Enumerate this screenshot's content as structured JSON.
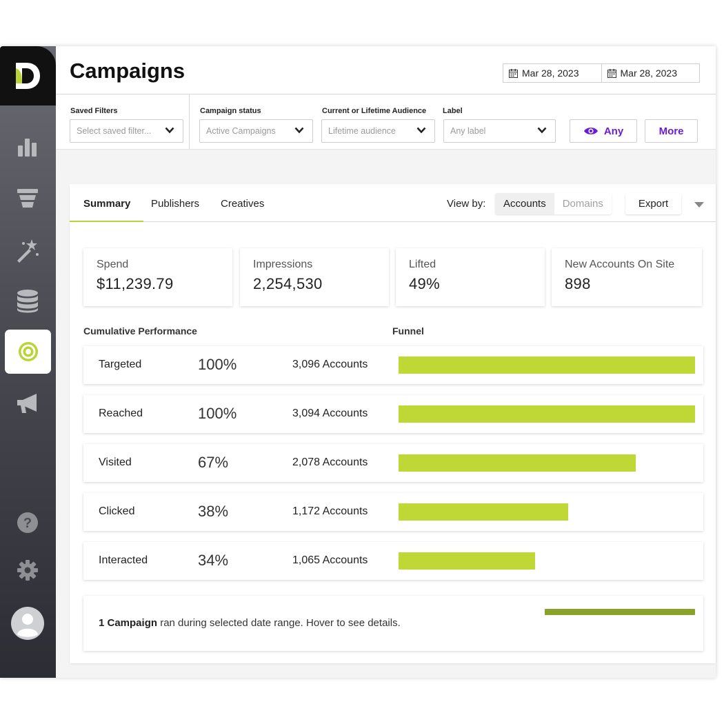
{
  "header": {
    "title": "Campaigns",
    "date_start": "Mar 28, 2023",
    "date_end": "Mar 28, 2023"
  },
  "filters": {
    "saved_filters": {
      "label": "Saved Filters",
      "placeholder": "Select saved filter..."
    },
    "campaign_status": {
      "label": "Campaign status",
      "value": "Active Campaigns"
    },
    "audience": {
      "label": "Current or Lifetime Audience",
      "value": "Lifetime audience"
    },
    "label": {
      "label": "Label",
      "value": "Any label"
    },
    "any_button": "Any",
    "more_button": "More"
  },
  "tabs": {
    "items": [
      {
        "label": "Summary",
        "active": true
      },
      {
        "label": "Publishers",
        "active": false
      },
      {
        "label": "Creatives",
        "active": false
      }
    ],
    "view_by_label": "View by:",
    "view_by_options": [
      "Accounts",
      "Domains"
    ],
    "view_by_selected": "Accounts",
    "export_label": "Export"
  },
  "metrics": [
    {
      "label": "Spend",
      "value": "$11,239.79"
    },
    {
      "label": "Impressions",
      "value": "2,254,530"
    },
    {
      "label": "Lifted",
      "value": "49%"
    },
    {
      "label": "New Accounts On Site",
      "value": "898"
    }
  ],
  "sections": {
    "cumulative": "Cumulative Performance",
    "funnel": "Funnel"
  },
  "funnel": [
    {
      "stage": "Targeted",
      "percent": "100%",
      "accounts": "3,096 Accounts",
      "fill": 1.0
    },
    {
      "stage": "Reached",
      "percent": "100%",
      "accounts": "3,094 Accounts",
      "fill": 1.0
    },
    {
      "stage": "Visited",
      "percent": "67%",
      "accounts": "2,078 Accounts",
      "fill": 0.8
    },
    {
      "stage": "Clicked",
      "percent": "38%",
      "accounts": "1,172 Accounts",
      "fill": 0.573
    },
    {
      "stage": "Interacted",
      "percent": "34%",
      "accounts": "1,065 Accounts",
      "fill": 0.46
    }
  ],
  "footer": {
    "campaign_count": "1 Campaign",
    "message": " ran during selected date range. Hover to see details."
  },
  "colors": {
    "accent": "#bfd836",
    "button_text": "#6b1bd6",
    "sidebar_top": "#6a6b72",
    "sidebar_bottom": "#2c2d34",
    "campaign_bar": "#8aa22a"
  },
  "icons": [
    "logo-icon",
    "bar-chart-icon",
    "funnel-icon",
    "magic-wand-icon",
    "database-icon",
    "target-icon",
    "megaphone-icon",
    "help-icon",
    "gear-icon",
    "user-avatar-icon",
    "calendar-icon",
    "chevron-down-icon",
    "eye-icon"
  ]
}
